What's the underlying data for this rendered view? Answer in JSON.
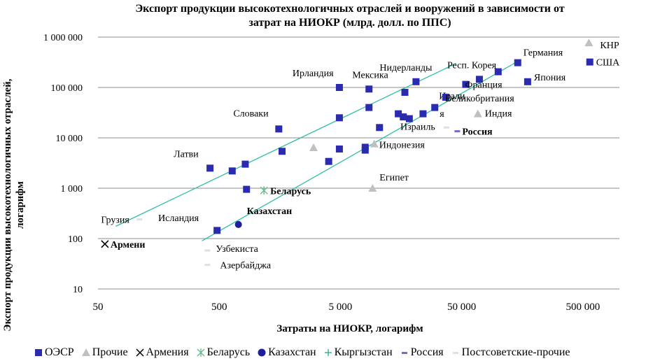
{
  "chart_data": {
    "type": "scatter",
    "title_line1": "Экспорт продукции высокотехнологичных отраслей и вооружений в зависимости от",
    "title_line2": "затрат на НИОКР (млрд. долл. по ППС)",
    "xlabel": "Затраты на НИОКР, логарифм",
    "ylabel": "Экспорт продукции высокотехнологичных отраслей, логарифм",
    "x_scale": "log",
    "y_scale": "log",
    "xlim": [
      50,
      1000000
    ],
    "ylim": [
      10,
      1000000
    ],
    "x_ticks": [
      50,
      500,
      5000,
      50000,
      500000
    ],
    "x_tick_labels": [
      "50",
      "500",
      "5 000",
      "50 000",
      "500 000"
    ],
    "y_ticks": [
      10,
      100,
      1000,
      10000,
      100000,
      1000000
    ],
    "y_tick_labels": [
      "10",
      "100",
      "1 000",
      "10 000",
      "100 000",
      "1 000 000"
    ],
    "grid": "horizontal",
    "legend_position": "bottom",
    "series": [
      {
        "name": "ОЭСР",
        "marker": "square",
        "color": "#2b2bb0",
        "points": [
          {
            "x": 420,
            "y": 2500,
            "label": "Латви"
          },
          {
            "x": 480,
            "y": 145
          },
          {
            "x": 640,
            "y": 2200
          },
          {
            "x": 820,
            "y": 3000
          },
          {
            "x": 840,
            "y": 950
          },
          {
            "x": 1550,
            "y": 15000,
            "label": "Словаки"
          },
          {
            "x": 1650,
            "y": 5400
          },
          {
            "x": 4000,
            "y": 3400
          },
          {
            "x": 4900,
            "y": 6000
          },
          {
            "x": 4900,
            "y": 25000
          },
          {
            "x": 4900,
            "y": 100000,
            "label": "Ирландия"
          },
          {
            "x": 8000,
            "y": 5700
          },
          {
            "x": 8000,
            "y": 6500
          },
          {
            "x": 8600,
            "y": 93000,
            "label": "Мексика"
          },
          {
            "x": 8600,
            "y": 40000
          },
          {
            "x": 10500,
            "y": 16000
          },
          {
            "x": 15000,
            "y": 30000
          },
          {
            "x": 16500,
            "y": 26000
          },
          {
            "x": 17000,
            "y": 80000
          },
          {
            "x": 18500,
            "y": 24000
          },
          {
            "x": 21000,
            "y": 130000,
            "label": "Нидерланды"
          },
          {
            "x": 24000,
            "y": 30000
          },
          {
            "x": 30000,
            "y": 40000,
            "label": "Итали"
          },
          {
            "x": 37000,
            "y": 64000,
            "label": "Великобритания"
          },
          {
            "x": 54000,
            "y": 115000,
            "label": "Франция"
          },
          {
            "x": 70000,
            "y": 145000,
            "label": "Респ. Корея"
          },
          {
            "x": 100000,
            "y": 205000
          },
          {
            "x": 145000,
            "y": 310000,
            "label": "Германия"
          },
          {
            "x": 175000,
            "y": 130000,
            "label": "Япония"
          },
          {
            "x": 570000,
            "y": 320000,
            "label": "США"
          }
        ]
      },
      {
        "name": "Прочие",
        "marker": "triangle",
        "color": "#c0c0c0",
        "points": [
          {
            "x": 3000,
            "y": 6400
          },
          {
            "x": 9200,
            "y": 1000,
            "label": "Египет"
          },
          {
            "x": 9500,
            "y": 7600,
            "label": "Индонезия"
          },
          {
            "x": 68000,
            "y": 30000,
            "label": "Индия"
          },
          {
            "x": 560000,
            "y": 770000,
            "label": "КНР"
          }
        ]
      },
      {
        "name": "Армения",
        "marker": "x",
        "color": "#000000",
        "points": [
          {
            "x": 57,
            "y": 78,
            "label": "Армени"
          }
        ]
      },
      {
        "name": "Беларусь",
        "marker": "asterisk",
        "color": "#66bb88",
        "points": [
          {
            "x": 1170,
            "y": 900,
            "label": "Беларусь"
          }
        ]
      },
      {
        "name": "Казахстан",
        "marker": "circle",
        "color": "#1f1f99",
        "points": [
          {
            "x": 720,
            "y": 190,
            "label": "Казахстан"
          }
        ]
      },
      {
        "name": "Кыргызстан",
        "marker": "plus",
        "color": "#3cb89a",
        "points": []
      },
      {
        "name": "Россия",
        "marker": "dash",
        "color": "#7b68c8",
        "points": [
          {
            "x": 46000,
            "y": 13500,
            "label": "Россия"
          }
        ]
      },
      {
        "name": "Постсоветские-прочие",
        "marker": "dash",
        "color": "#e0e0e0",
        "points": [
          {
            "x": 110,
            "y": 240,
            "label": "Грузия"
          },
          {
            "x": 170,
            "y": 260,
            "label": "Исландия"
          },
          {
            "x": 400,
            "y": 58,
            "label": "Узбекиста"
          },
          {
            "x": 400,
            "y": 30,
            "label": "Азербайджа"
          },
          {
            "x": 37500,
            "y": 16000,
            "label": "Израиль"
          }
        ]
      }
    ],
    "trendlines": [
      {
        "color": "#2fbfa6",
        "from": {
          "x": 70,
          "y": 175
        },
        "to": {
          "x": 45000,
          "y": 300000
        }
      },
      {
        "color": "#2fbfa6",
        "from": {
          "x": 360,
          "y": 90
        },
        "to": {
          "x": 155000,
          "y": 360000
        }
      }
    ],
    "extra_labels": [
      {
        "text": "я",
        "x": 30000,
        "y": 28000
      }
    ]
  }
}
